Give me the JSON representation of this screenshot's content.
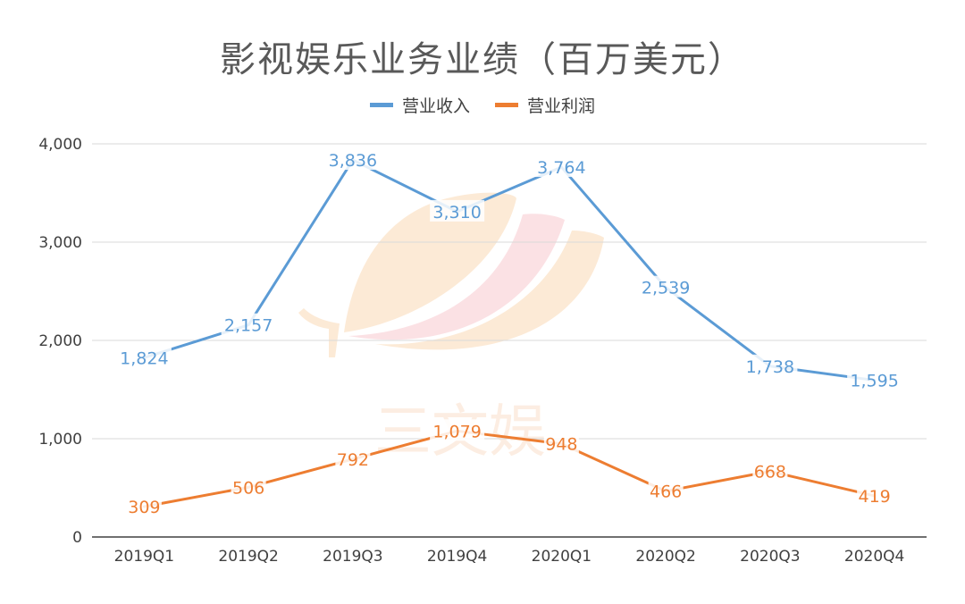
{
  "chart_data": {
    "type": "line",
    "title": "影视娱乐业务业绩（百万美元）",
    "categories": [
      "2019Q1",
      "2019Q2",
      "2019Q3",
      "2019Q4",
      "2020Q1",
      "2020Q2",
      "2020Q3",
      "2020Q4"
    ],
    "series": [
      {
        "name": "营业收入",
        "color": "#5B9BD5",
        "values": [
          1824,
          2157,
          3836,
          3310,
          3764,
          2539,
          1738,
          1595
        ],
        "labels": [
          "1,824",
          "2,157",
          "3,836",
          "3,310",
          "3,764",
          "2,539",
          "1,738",
          "1,595"
        ]
      },
      {
        "name": "营业利润",
        "color": "#ED7D31",
        "values": [
          309,
          506,
          792,
          1079,
          948,
          466,
          668,
          419
        ],
        "labels": [
          "309",
          "506",
          "792",
          "1,079",
          "948",
          "466",
          "668",
          "419"
        ]
      }
    ],
    "y_ticks": [
      "0",
      "1,000",
      "2,000",
      "3,000",
      "4,000"
    ],
    "ylim": [
      0,
      4000
    ],
    "grid": true,
    "legend_position": "top-center"
  },
  "watermark": {
    "text": "三文娱"
  }
}
